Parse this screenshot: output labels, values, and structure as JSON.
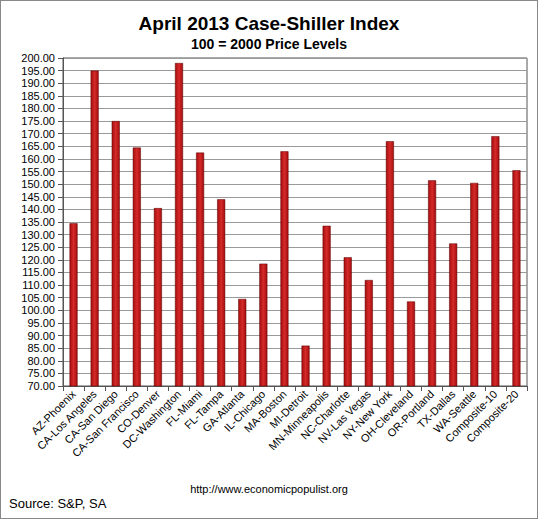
{
  "chart_data": {
    "type": "bar",
    "title": "April 2013 Case-Shiller Index",
    "subtitle": "100 = 2000 Price Levels",
    "categories": [
      "AZ-Phoenix",
      "CA-Los Angeles",
      "CA-San Diego",
      "CA-San Francisco",
      "CO-Denver",
      "DC-Washington",
      "FL-Miami",
      "FL-Tampa",
      "GA-Atlanta",
      "IL-Chicago",
      "MA-Boston",
      "MI-Detroit",
      "MN-Minneapolis",
      "NC-Charlotte",
      "NV-Las Vegas",
      "NY-New York",
      "OH-Cleveland",
      "OR-Portland",
      "TX-Dallas",
      "WA-Seattle",
      "Composite-10",
      "Composite-20"
    ],
    "values": [
      134.5,
      195,
      175,
      164.5,
      140.5,
      198,
      162.5,
      144,
      104.5,
      118.5,
      163,
      86,
      133.5,
      121,
      112,
      167,
      103.5,
      151.5,
      126.5,
      150.5,
      169,
      155.5
    ],
    "color": "#a80d0d",
    "ylim": [
      70,
      200
    ],
    "yticks": [
      {
        "value": 70,
        "label": "70.00"
      },
      {
        "value": 75,
        "label": "75.00"
      },
      {
        "value": 80,
        "label": "80.00"
      },
      {
        "value": 85,
        "label": "85.00"
      },
      {
        "value": 90,
        "label": "90.00"
      },
      {
        "value": 95,
        "label": "95.00"
      },
      {
        "value": 100,
        "label": "100.00"
      },
      {
        "value": 105,
        "label": "105.00"
      },
      {
        "value": 110,
        "label": "110.00"
      },
      {
        "value": 115,
        "label": "115.00"
      },
      {
        "value": 120,
        "label": "120.00"
      },
      {
        "value": 125,
        "label": "125.00"
      },
      {
        "value": 130,
        "label": "130.00"
      },
      {
        "value": 135,
        "label": "135.00"
      },
      {
        "value": 140,
        "label": "140.00"
      },
      {
        "value": 145,
        "label": "145.00"
      },
      {
        "value": 150,
        "label": "150.00"
      },
      {
        "value": 155,
        "label": "155.00"
      },
      {
        "value": 160,
        "label": "160.00"
      },
      {
        "value": 165,
        "label": "165.00"
      },
      {
        "value": 170,
        "label": "170.00"
      },
      {
        "value": 175,
        "label": "175.00"
      },
      {
        "value": 180,
        "label": "180.00"
      },
      {
        "value": 185,
        "label": "185.00"
      },
      {
        "value": 190,
        "label": "190.00"
      },
      {
        "value": 195,
        "label": "195.00"
      },
      {
        "value": 200,
        "label": "200.00"
      }
    ],
    "grid": true,
    "annotations": [
      "Source: S&P, SA",
      "http://www.economicpopulist.org"
    ]
  }
}
